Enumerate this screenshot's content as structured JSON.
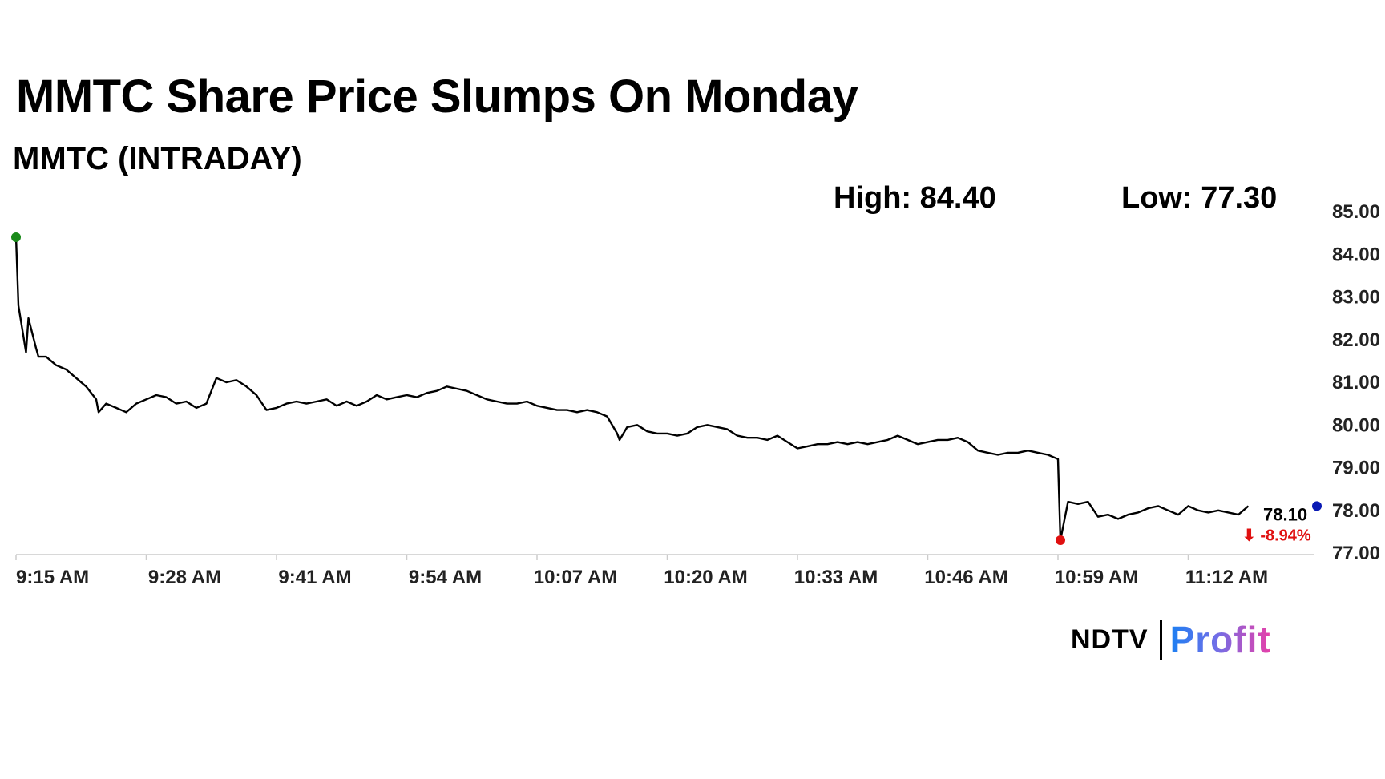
{
  "title": "MMTC Share Price Slumps On Monday",
  "subtitle": "MMTC (INTRADAY)",
  "stats": {
    "high": "High: 84.40",
    "low": "Low: 77.30"
  },
  "logo": {
    "left": "NDTV",
    "right": "Profit"
  },
  "colors": {
    "line": "#000000",
    "open_marker": "#1a8a1a",
    "low_marker": "#e01010",
    "last_marker": "#0a1ab4",
    "change": "#e01010",
    "axis_text": "#222222",
    "axis": "#cccccc"
  },
  "chart_data": {
    "type": "line",
    "title": "MMTC (INTRADAY)",
    "x_tick_labels": [
      "9:15 AM",
      "9:28 AM",
      "9:41 AM",
      "9:54 AM",
      "10:07 AM",
      "10:20 AM",
      "10:33 AM",
      "10:46 AM",
      "10:59 AM",
      "11:12 AM"
    ],
    "y_tick_labels": [
      "85.00",
      "84.00",
      "83.00",
      "82.00",
      "81.00",
      "80.00",
      "79.00",
      "78.00",
      "77.00"
    ],
    "ylim": [
      77,
      85
    ],
    "x_axis": "time (HH:MM)",
    "grid": false,
    "high": 84.4,
    "low": 77.3,
    "last_price_label": "78.10",
    "last_price": 78.1,
    "change_label": "⬇ -8.94%",
    "points": [
      [
        "9:15",
        84.4
      ],
      [
        "9:15",
        82.8
      ],
      [
        "9:16",
        81.7
      ],
      [
        "9:16",
        82.5
      ],
      [
        "9:17",
        81.8
      ],
      [
        "9:17",
        81.6
      ],
      [
        "9:18",
        81.6
      ],
      [
        "9:19",
        81.4
      ],
      [
        "9:20",
        81.3
      ],
      [
        "9:21",
        81.1
      ],
      [
        "9:22",
        80.9
      ],
      [
        "9:23",
        80.6
      ],
      [
        "9:23",
        80.3
      ],
      [
        "9:24",
        80.5
      ],
      [
        "9:25",
        80.4
      ],
      [
        "9:26",
        80.3
      ],
      [
        "9:27",
        80.5
      ],
      [
        "9:28",
        80.6
      ],
      [
        "9:29",
        80.7
      ],
      [
        "9:30",
        80.65
      ],
      [
        "9:31",
        80.5
      ],
      [
        "9:32",
        80.55
      ],
      [
        "9:33",
        80.4
      ],
      [
        "9:34",
        80.5
      ],
      [
        "9:35",
        81.1
      ],
      [
        "9:36",
        81.0
      ],
      [
        "9:37",
        81.05
      ],
      [
        "9:38",
        80.9
      ],
      [
        "9:39",
        80.7
      ],
      [
        "9:40",
        80.35
      ],
      [
        "9:41",
        80.4
      ],
      [
        "9:42",
        80.5
      ],
      [
        "9:43",
        80.55
      ],
      [
        "9:44",
        80.5
      ],
      [
        "9:45",
        80.55
      ],
      [
        "9:46",
        80.6
      ],
      [
        "9:47",
        80.45
      ],
      [
        "9:48",
        80.55
      ],
      [
        "9:49",
        80.45
      ],
      [
        "9:50",
        80.55
      ],
      [
        "9:51",
        80.7
      ],
      [
        "9:52",
        80.6
      ],
      [
        "9:53",
        80.65
      ],
      [
        "9:54",
        80.7
      ],
      [
        "9:55",
        80.65
      ],
      [
        "9:56",
        80.75
      ],
      [
        "9:57",
        80.8
      ],
      [
        "9:58",
        80.9
      ],
      [
        "9:59",
        80.85
      ],
      [
        "10:00",
        80.8
      ],
      [
        "10:01",
        80.7
      ],
      [
        "10:02",
        80.6
      ],
      [
        "10:03",
        80.55
      ],
      [
        "10:04",
        80.5
      ],
      [
        "10:05",
        80.5
      ],
      [
        "10:06",
        80.55
      ],
      [
        "10:07",
        80.45
      ],
      [
        "10:08",
        80.4
      ],
      [
        "10:09",
        80.35
      ],
      [
        "10:10",
        80.35
      ],
      [
        "10:11",
        80.3
      ],
      [
        "10:12",
        80.35
      ],
      [
        "10:13",
        80.3
      ],
      [
        "10:14",
        80.2
      ],
      [
        "10:15",
        79.8
      ],
      [
        "10:15",
        79.65
      ],
      [
        "10:16",
        79.95
      ],
      [
        "10:17",
        80.0
      ],
      [
        "10:18",
        79.85
      ],
      [
        "10:19",
        79.8
      ],
      [
        "10:20",
        79.8
      ],
      [
        "10:21",
        79.75
      ],
      [
        "10:22",
        79.8
      ],
      [
        "10:23",
        79.95
      ],
      [
        "10:24",
        80.0
      ],
      [
        "10:25",
        79.95
      ],
      [
        "10:26",
        79.9
      ],
      [
        "10:27",
        79.75
      ],
      [
        "10:28",
        79.7
      ],
      [
        "10:29",
        79.7
      ],
      [
        "10:30",
        79.65
      ],
      [
        "10:31",
        79.75
      ],
      [
        "10:32",
        79.6
      ],
      [
        "10:33",
        79.45
      ],
      [
        "10:34",
        79.5
      ],
      [
        "10:35",
        79.55
      ],
      [
        "10:36",
        79.55
      ],
      [
        "10:37",
        79.6
      ],
      [
        "10:38",
        79.55
      ],
      [
        "10:39",
        79.6
      ],
      [
        "10:40",
        79.55
      ],
      [
        "10:41",
        79.6
      ],
      [
        "10:42",
        79.65
      ],
      [
        "10:43",
        79.75
      ],
      [
        "10:44",
        79.65
      ],
      [
        "10:45",
        79.55
      ],
      [
        "10:46",
        79.6
      ],
      [
        "10:47",
        79.65
      ],
      [
        "10:48",
        79.65
      ],
      [
        "10:49",
        79.7
      ],
      [
        "10:50",
        79.6
      ],
      [
        "10:51",
        79.4
      ],
      [
        "10:52",
        79.35
      ],
      [
        "10:53",
        79.3
      ],
      [
        "10:54",
        79.35
      ],
      [
        "10:55",
        79.35
      ],
      [
        "10:56",
        79.4
      ],
      [
        "10:57",
        79.35
      ],
      [
        "10:58",
        79.3
      ],
      [
        "10:59",
        79.2
      ],
      [
        "10:59",
        77.3
      ],
      [
        "11:00",
        78.2
      ],
      [
        "11:01",
        78.15
      ],
      [
        "11:02",
        78.2
      ],
      [
        "11:03",
        77.85
      ],
      [
        "11:04",
        77.9
      ],
      [
        "11:05",
        77.8
      ],
      [
        "11:06",
        77.9
      ],
      [
        "11:07",
        77.95
      ],
      [
        "11:08",
        78.05
      ],
      [
        "11:09",
        78.1
      ],
      [
        "11:10",
        78.0
      ],
      [
        "11:11",
        77.9
      ],
      [
        "11:12",
        78.1
      ],
      [
        "11:13",
        78.0
      ],
      [
        "11:14",
        77.95
      ],
      [
        "11:15",
        78.0
      ],
      [
        "11:16",
        77.95
      ],
      [
        "11:17",
        77.9
      ],
      [
        "11:18",
        78.1
      ]
    ]
  }
}
